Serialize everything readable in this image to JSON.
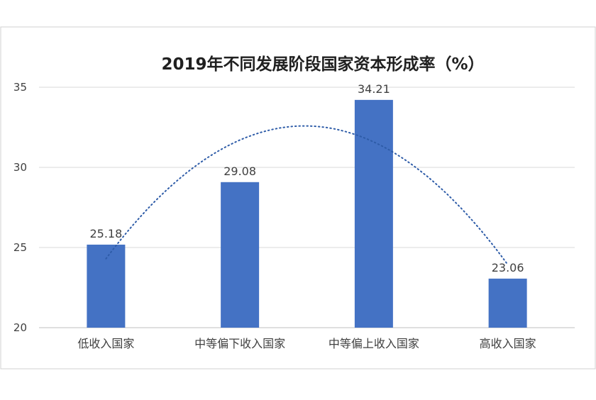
{
  "chart_data": {
    "type": "bar",
    "title": "2019年不同发展阶段国家资本形成率（%）",
    "categories": [
      "低收入国家",
      "中等偏下收入国家",
      "中等偏上收入国家",
      "高收入国家"
    ],
    "values": [
      25.18,
      29.08,
      34.21,
      23.06
    ],
    "value_labels": [
      "25.18",
      "29.08",
      "34.21",
      "23.06"
    ],
    "ylim": [
      20,
      35
    ],
    "yticks": [
      20,
      25,
      30,
      35
    ],
    "ytick_labels": [
      "20",
      "25",
      "30",
      "35"
    ],
    "xlabel": "",
    "ylabel": "",
    "grid": true,
    "legend": "none",
    "trendline": {
      "style": "dotted",
      "type": "polynomial"
    },
    "colors": {
      "bar": "#4472C4",
      "trendline": "#2E5CA8",
      "grid": "#d9d9d9",
      "text": "#404040"
    }
  }
}
